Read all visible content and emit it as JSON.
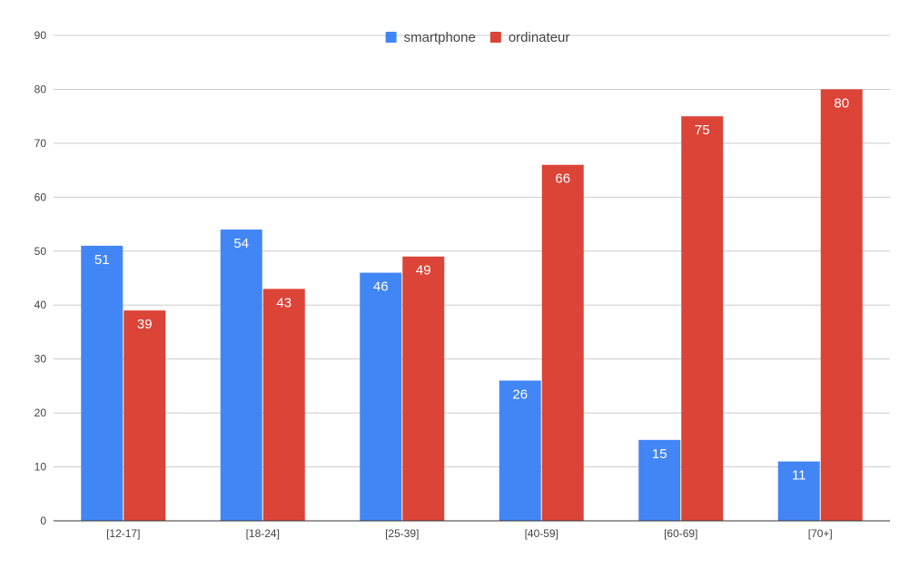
{
  "chart_data": {
    "type": "bar",
    "title": "",
    "xlabel": "",
    "ylabel": "",
    "categories": [
      "[12-17]",
      "[18-24]",
      "[25-39]",
      "[40-59]",
      "[60-69]",
      "[70+]"
    ],
    "series": [
      {
        "name": "smartphone",
        "color": "#4285f4",
        "values": [
          51,
          54,
          46,
          26,
          15,
          11
        ]
      },
      {
        "name": "ordinateur",
        "color": "#db4437",
        "values": [
          39,
          43,
          49,
          66,
          75,
          80
        ]
      }
    ],
    "ylim": [
      0,
      90
    ],
    "yticks": [
      0,
      10,
      20,
      30,
      40,
      50,
      60,
      70,
      80,
      90
    ],
    "grid": true,
    "legend_position": "top-center",
    "data_labels": true
  }
}
